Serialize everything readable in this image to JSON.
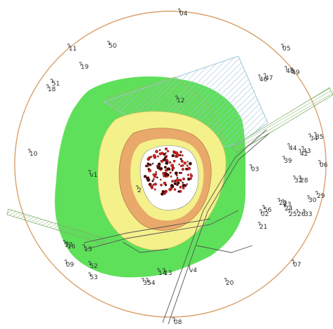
{
  "map": {
    "colors": {
      "boundary": "#d9a06b",
      "zone_outer": "#5ee05a",
      "zone_yellow": "#f4f08a",
      "zone_orange": "#e9a96b",
      "zone_inner": "#ffffff",
      "hatch_blue": "#9fc6d6",
      "hatch_green": "#8fc26a",
      "red_points": "#d8231f",
      "road": "#555555"
    },
    "labels": {
      "p04": "04",
      "p11": "11",
      "p50": "50",
      "p05": "05",
      "p19": "19",
      "p48": "48",
      "p49": "49",
      "p46": "46",
      "p47": "47",
      "p51": "51",
      "p18": "18",
      "p12": "12",
      "p10": "10",
      "pv1": "v1",
      "p03": "03",
      "p06": "06",
      "p34": "34",
      "p35": "35",
      "p44": "44",
      "p43": "43",
      "p42": "42",
      "p39": "39",
      "p32": "32",
      "p28": "28",
      "p29": "29",
      "p30": "30",
      "p22": "22",
      "p23": "23",
      "p24": "24",
      "p25": "25",
      "p26": "26",
      "p33": "33",
      "p02": "02",
      "p56": "56",
      "p21": "21",
      "p2": "2",
      "p16": "16",
      "p15": "15",
      "p17": "17",
      "p09": "09",
      "p52": "52",
      "p53": "53",
      "p14": "14",
      "p13": "13",
      "pv4": "v4",
      "p35b": "35",
      "p54": "54",
      "p20": "20",
      "p07": "07",
      "p08": "08"
    }
  }
}
